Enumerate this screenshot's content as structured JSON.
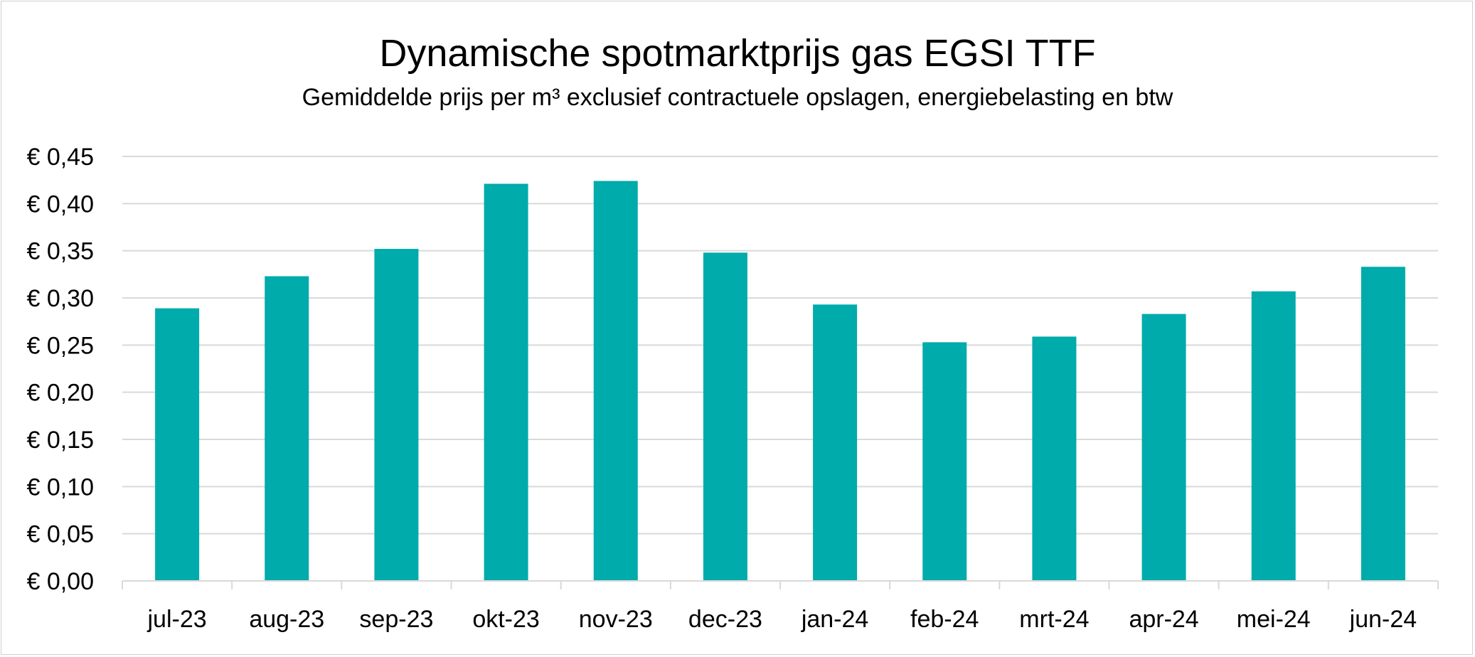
{
  "chart_data": {
    "type": "bar",
    "title": "Dynamische spotmarktprijs gas EGSI TTF",
    "subtitle": "Gemiddelde prijs per m³ exclusief contractuele opslagen, energiebelasting en btw",
    "xlabel": "",
    "ylabel": "",
    "categories": [
      "jul-23",
      "aug-23",
      "sep-23",
      "okt-23",
      "nov-23",
      "dec-23",
      "jan-24",
      "feb-24",
      "mrt-24",
      "apr-24",
      "mei-24",
      "jun-24"
    ],
    "values": [
      0.289,
      0.323,
      0.352,
      0.421,
      0.424,
      0.348,
      0.293,
      0.253,
      0.259,
      0.283,
      0.307,
      0.333
    ],
    "ylim": [
      0,
      0.45
    ],
    "yticks": [
      0.45,
      0.4,
      0.35,
      0.3,
      0.25,
      0.2,
      0.15,
      0.1,
      0.05,
      0.0
    ],
    "ytick_labels": [
      "€ 0,45",
      "€ 0,40",
      "€ 0,35",
      "€ 0,30",
      "€ 0,25",
      "€ 0,20",
      "€ 0,15",
      "€ 0,10",
      "€ 0,05",
      "€ 0,00"
    ],
    "grid": true,
    "legend": "none",
    "bar_color": "#00ABAB",
    "grid_color": "#D9D9D9"
  }
}
